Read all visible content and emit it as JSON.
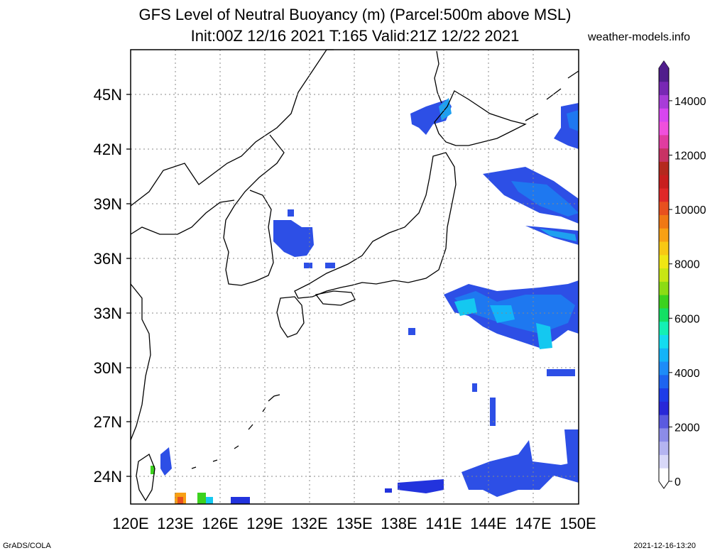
{
  "title_line1": "GFS Level of Neutral Buoyancy (m) (Parcel:500m above MSL)",
  "title_line2": "Init:00Z 12/16 2021 T:165 Valid:21Z 12/22 2021",
  "site": "weather-models.info",
  "footer_left": "GrADS/COLA",
  "footer_right": "2021-12-16-13:20",
  "map": {
    "lon_range": [
      120,
      150
    ],
    "lat_range": [
      22.5,
      47.5
    ],
    "lon_ticks": [
      "120E",
      "123E",
      "126E",
      "129E",
      "132E",
      "135E",
      "138E",
      "141E",
      "144E",
      "147E",
      "150E"
    ],
    "lat_ticks": [
      "24N",
      "27N",
      "30N",
      "33N",
      "36N",
      "39N",
      "42N",
      "45N"
    ]
  },
  "colorbar": {
    "labels": [
      "0",
      "2000",
      "4000",
      "6000",
      "8000",
      "10000",
      "12000",
      "14000"
    ],
    "colors": [
      "#ffffff",
      "#d8d8f8",
      "#b4b4f0",
      "#8c8ce8",
      "#5a5ae0",
      "#2828d8",
      "#1e3ce8",
      "#1e64f0",
      "#1e8cf8",
      "#14b4f8",
      "#14dcf0",
      "#14f0b4",
      "#14e064",
      "#3cd21e",
      "#8cdc14",
      "#c8e614",
      "#f0e614",
      "#f8c814",
      "#f8a014",
      "#f07814",
      "#e8501e",
      "#e02828",
      "#c81e1e",
      "#b4281e",
      "#c83264",
      "#e03ca0",
      "#f050dc",
      "#d846f0",
      "#a83cd8",
      "#7828b4",
      "#501e8c"
    ]
  }
}
